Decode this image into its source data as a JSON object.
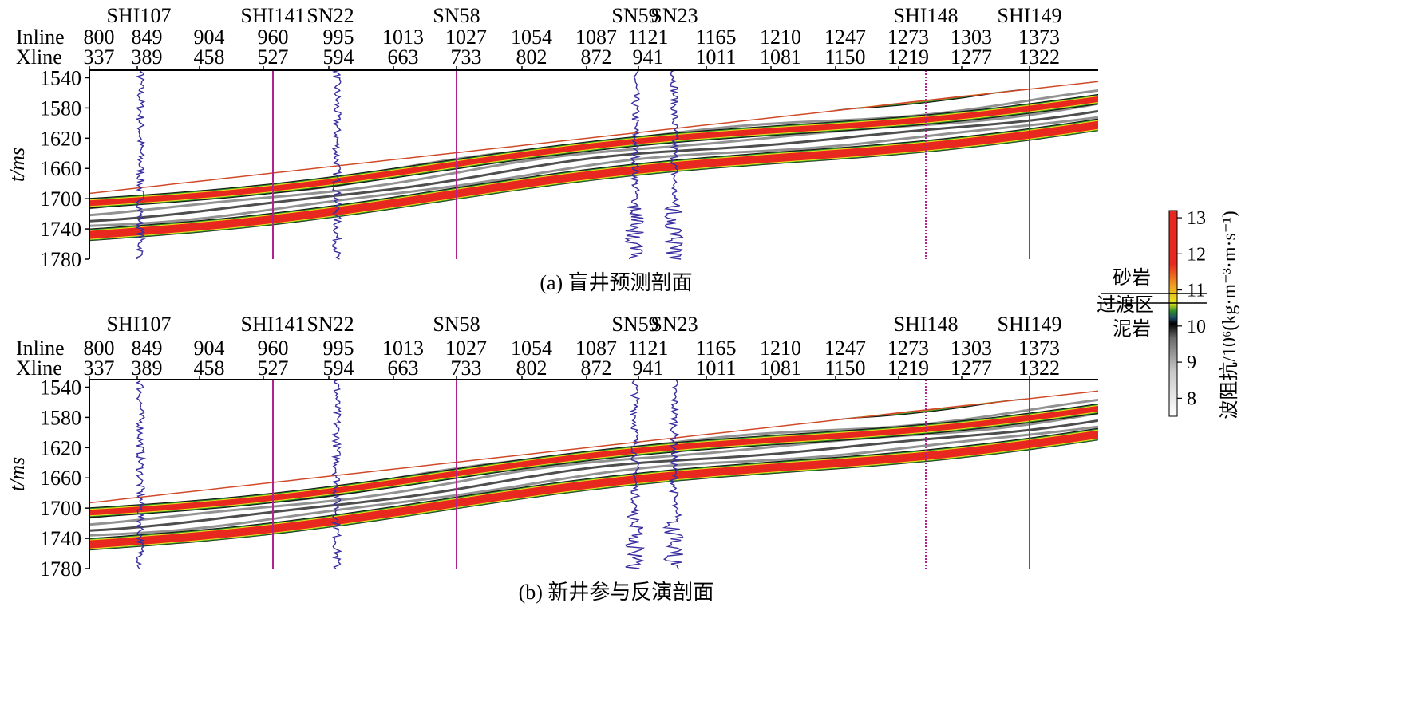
{
  "chart_data": [
    {
      "type": "heatmap",
      "caption": "(a) 盲井预测剖面",
      "top_labels": {
        "inline": "Inline",
        "xline": "Xline"
      },
      "inline": [
        800,
        849,
        904,
        960,
        995,
        1013,
        1027,
        1054,
        1087,
        1121,
        1165,
        1210,
        1247,
        1273,
        1303,
        1373
      ],
      "xline": [
        337,
        389,
        458,
        527,
        594,
        663,
        733,
        802,
        872,
        941,
        1011,
        1081,
        1150,
        1219,
        1277,
        1322
      ],
      "wells": [
        "SHI107",
        "SHI141",
        "SN22",
        "SN58",
        "SN59",
        "SN23",
        "SHI148",
        "SHI149"
      ],
      "ylabel": "t/ms",
      "y_ticks": [
        1540,
        1580,
        1620,
        1660,
        1700,
        1740,
        1780
      ],
      "ylim": [
        1780,
        1530
      ]
    },
    {
      "type": "heatmap",
      "caption": "(b) 新井参与反演剖面",
      "top_labels": {
        "inline": "Inline",
        "xline": "Xline"
      },
      "inline": [
        800,
        849,
        904,
        960,
        995,
        1013,
        1027,
        1054,
        1087,
        1121,
        1165,
        1210,
        1247,
        1273,
        1303,
        1373
      ],
      "xline": [
        337,
        389,
        458,
        527,
        594,
        663,
        733,
        802,
        872,
        941,
        1011,
        1081,
        1150,
        1219,
        1277,
        1322
      ],
      "wells": [
        "SHI107",
        "SHI141",
        "SN22",
        "SN58",
        "SN59",
        "SN23",
        "SHI148",
        "SHI149"
      ],
      "ylabel": "t/ms",
      "y_ticks": [
        1540,
        1580,
        1620,
        1660,
        1700,
        1740,
        1780
      ],
      "ylim": [
        1780,
        1530
      ]
    }
  ],
  "colorbar": {
    "title": "波阻抗/10⁶(kg·m⁻³·m·s⁻¹)",
    "ticks": [
      8,
      9,
      10,
      11,
      12,
      13
    ],
    "range": [
      7.5,
      13.2
    ],
    "zones": [
      "砂岩",
      "过渡区",
      "泥岩"
    ],
    "colors": [
      "#ffffff",
      "#c0c0c0",
      "#606060",
      "#000000",
      "#1a5e6e",
      "#2a8a2a",
      "#e8e820",
      "#f0a020",
      "#e8281e"
    ]
  },
  "colors": {
    "well_line": "#b0228c",
    "log_curve": "#3a2fa0",
    "high_impedance": "#e8281e"
  }
}
